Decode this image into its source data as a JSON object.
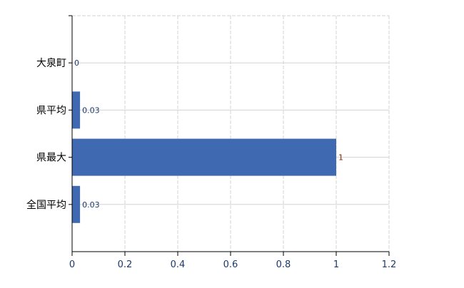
{
  "chart_data": {
    "type": "bar",
    "orientation": "horizontal",
    "categories": [
      "大泉町",
      "県平均",
      "県最大",
      "全国平均"
    ],
    "values": [
      0,
      0.03,
      1,
      0.03
    ],
    "data_labels": [
      "0",
      "0.03",
      "1",
      "0.03"
    ],
    "xlim": [
      0,
      1.2
    ],
    "xticks": [
      "0",
      "0.2",
      "0.4",
      "0.6",
      "0.8",
      "1",
      "1.2"
    ],
    "grid": true,
    "title": "",
    "xlabel": "",
    "ylabel": "",
    "colors": {
      "bar": "#3f69b1",
      "grid": "#d3d3d3",
      "axis": "#000000"
    }
  }
}
